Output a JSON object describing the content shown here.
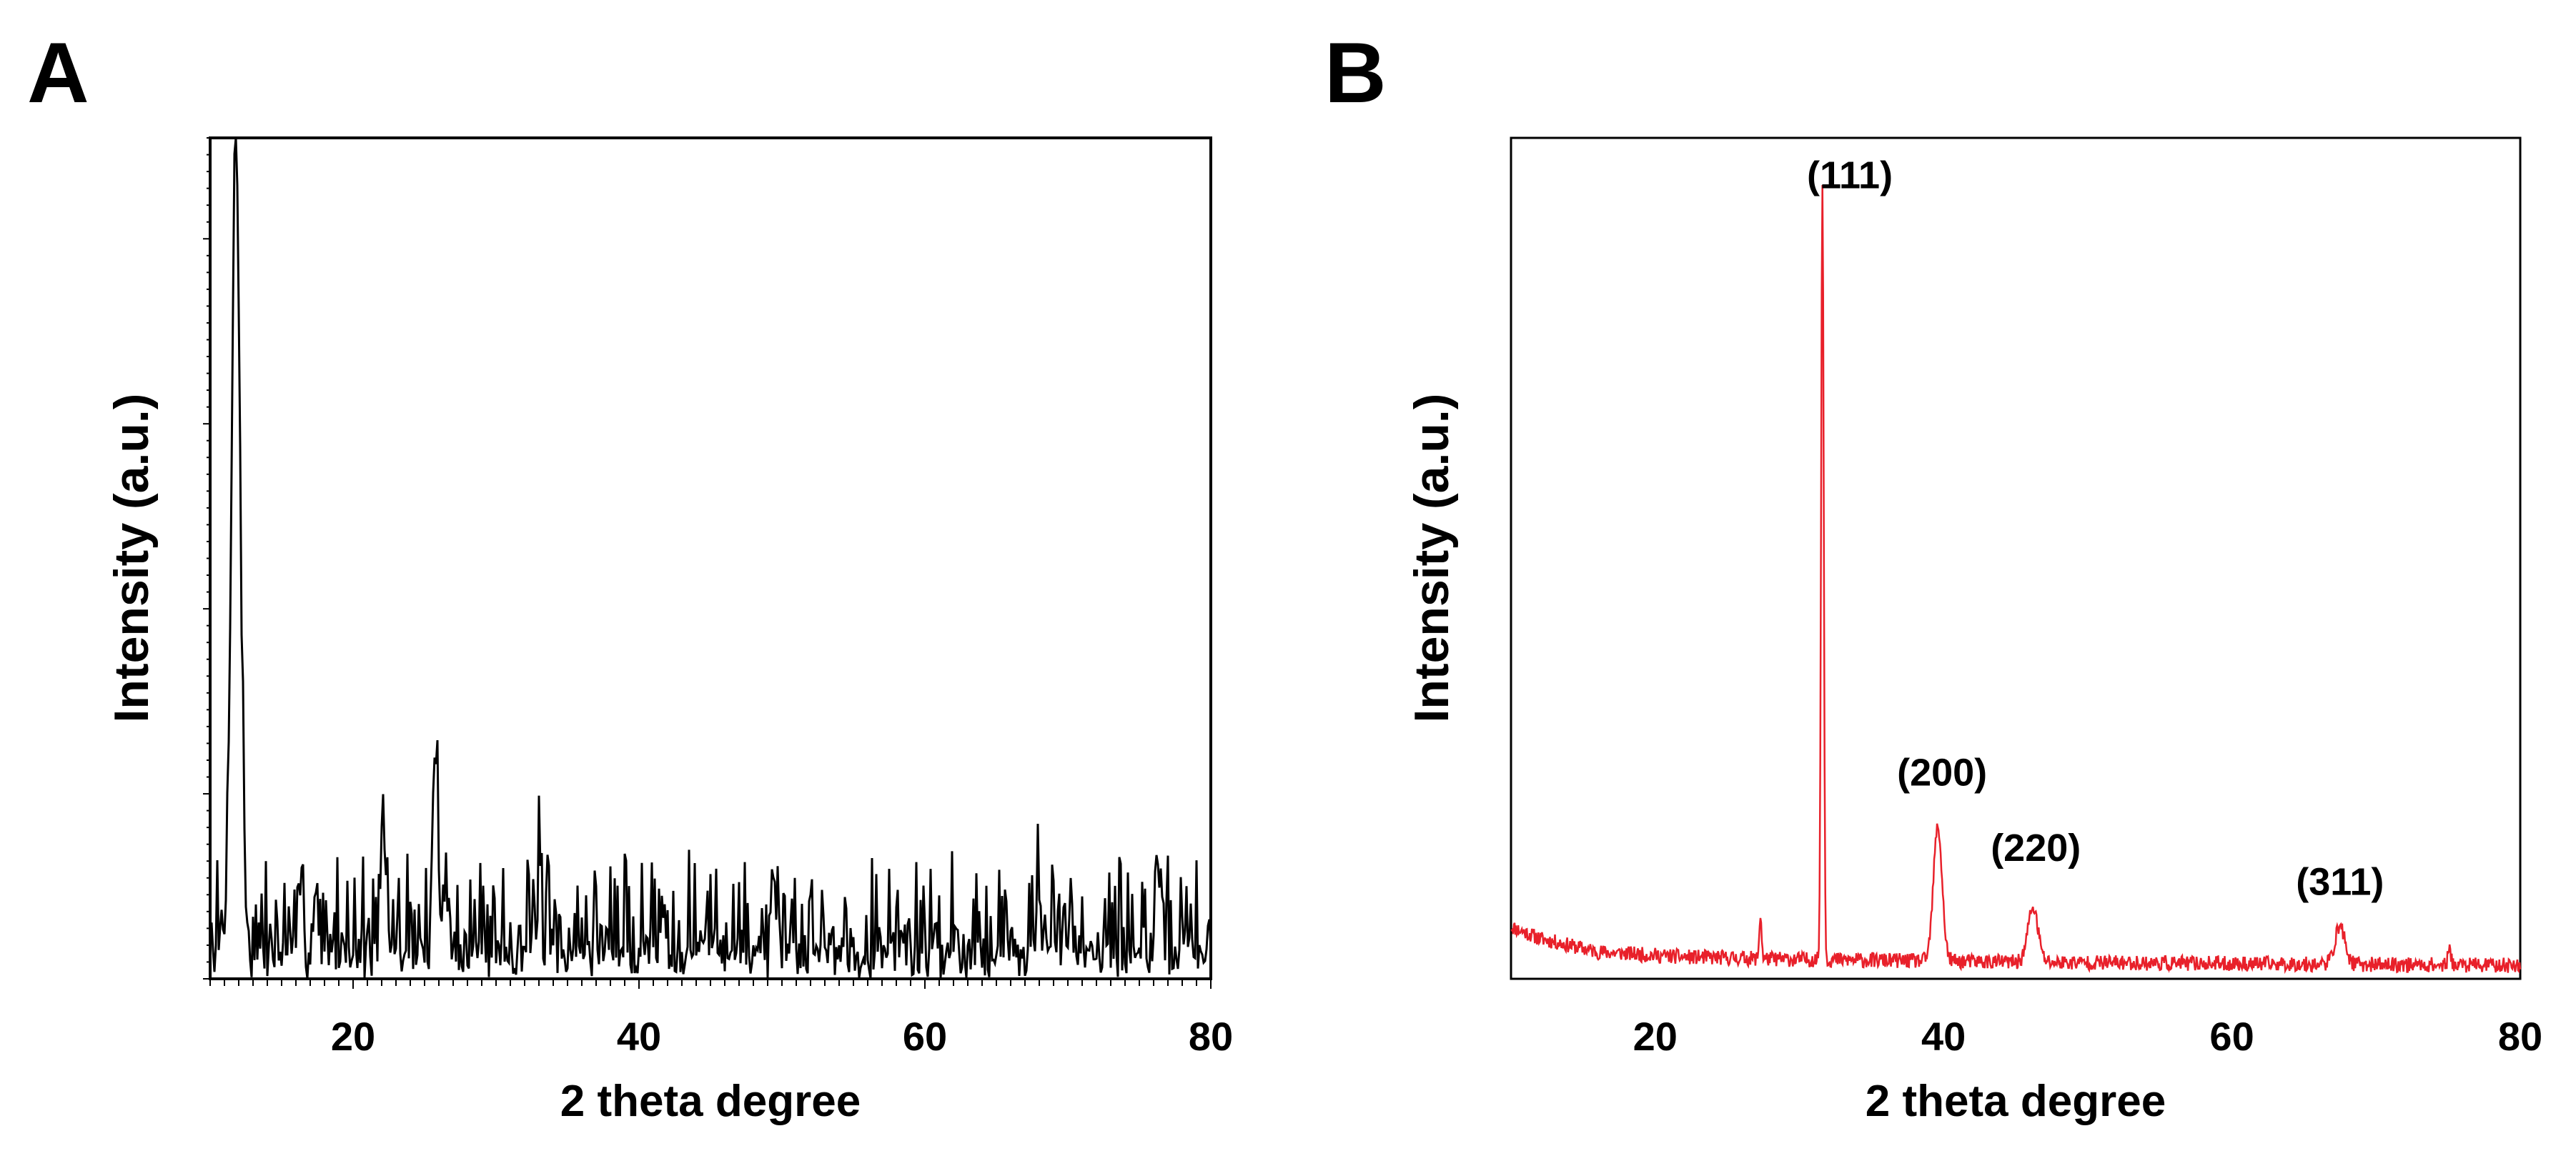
{
  "panels": [
    {
      "letter": "A",
      "chart_data": {
        "type": "line",
        "title": "",
        "xlabel": "2 theta degree",
        "ylabel": "Intensity (a.u.)",
        "xlim": [
          10,
          80
        ],
        "ylim": [
          0,
          100
        ],
        "xticks": [
          20,
          40,
          60,
          80
        ],
        "minor_x_step": 1,
        "y_minor_step": 2,
        "y_major_step": 22,
        "grid": false,
        "color": "#000000",
        "noise": {
          "seed": 7,
          "base": 4,
          "amp": 13,
          "step": 0.1
        },
        "peaks": [
          {
            "x": 11.8,
            "height": 97,
            "width": 0.3
          },
          {
            "x": 17.4,
            "height": 8,
            "width": 0.15
          },
          {
            "x": 22.2,
            "height": 10,
            "width": 0.2
          },
          {
            "x": 25.8,
            "height": 24,
            "width": 0.15
          },
          {
            "x": 26.4,
            "height": 8,
            "width": 0.2
          },
          {
            "x": 33.0,
            "height": 8,
            "width": 0.15
          },
          {
            "x": 41.8,
            "height": 5,
            "width": 0.15
          },
          {
            "x": 68.0,
            "height": 6,
            "width": 0.15
          }
        ]
      }
    },
    {
      "letter": "B",
      "chart_data": {
        "type": "line",
        "title": "",
        "xlabel": "2 theta degree",
        "ylabel": "Intensity (a.u.)",
        "xlim": [
          10,
          80
        ],
        "ylim": [
          0,
          100
        ],
        "xticks": [
          20,
          40,
          60,
          80
        ],
        "grid": false,
        "color": "#e8202a",
        "noise": {
          "seed": 11,
          "amp": 0.9,
          "step": 0.05,
          "baseline": [
            [
              10,
              6.2
            ],
            [
              12,
              4.8
            ],
            [
              16,
              3.2
            ],
            [
              22,
              2.6
            ],
            [
              30,
              2.3
            ],
            [
              45,
              2.0
            ],
            [
              60,
              1.8
            ],
            [
              80,
              1.6
            ]
          ]
        },
        "peaks": [
          {
            "x": 27.3,
            "height": 5.2,
            "width": 0.08
          },
          {
            "x": 31.6,
            "height": 93,
            "width": 0.09
          },
          {
            "x": 39.6,
            "height": 16,
            "width": 0.3
          },
          {
            "x": 46.2,
            "height": 6.5,
            "width": 0.35
          },
          {
            "x": 67.5,
            "height": 4.5,
            "width": 0.35
          },
          {
            "x": 75.1,
            "height": 1.6,
            "width": 0.12
          }
        ],
        "annotations": [
          {
            "text": "(111)",
            "x": 33.5,
            "y": 94
          },
          {
            "text": "(200)",
            "x": 39.9,
            "y": 23
          },
          {
            "text": "(220)",
            "x": 46.4,
            "y": 14
          },
          {
            "text": "(311)",
            "x": 67.5,
            "y": 10
          }
        ]
      }
    }
  ]
}
